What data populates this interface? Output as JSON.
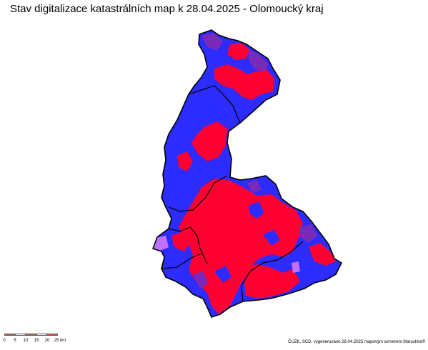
{
  "title": "Stav digitalizace katastrálních map k 28.04.2025 - Olomoucký kraj",
  "colors": {
    "digitized": "#ff0033",
    "analog": "#2c2cff",
    "partial": "#7a2ab8",
    "other": "#c070ff",
    "border": "#000000",
    "scale_dark": "#c0613a"
  },
  "scale": {
    "labels": [
      "0",
      "5",
      "10",
      "15",
      "20",
      "25 km"
    ]
  },
  "credit": "ČÚZK, SCD, vygenerováno 28.04.2025 mapovým serverem Marushka®"
}
